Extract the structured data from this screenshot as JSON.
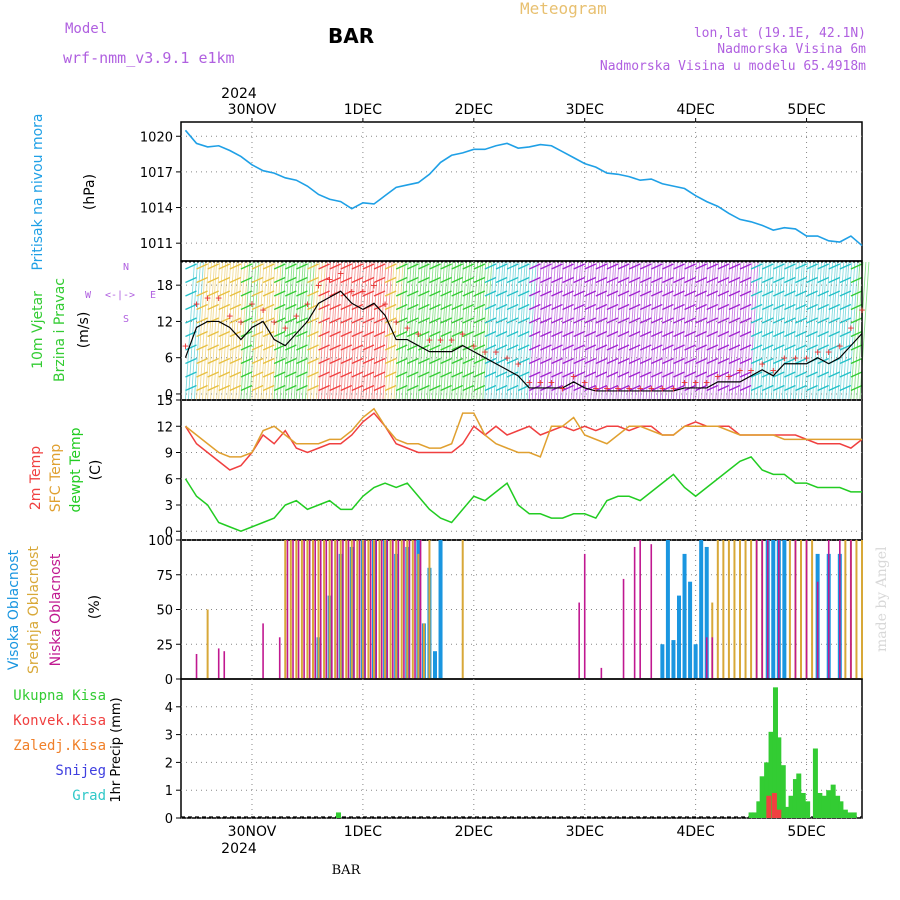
{
  "header": {
    "model_label": "Model",
    "model_name": "wrf-nmm_v3.9.1 e1km",
    "station": "BAR",
    "title": "Meteogram",
    "lonlat": "lon,lat (19.1E, 42.1N)",
    "elevation": "Nadmorska Visina 6m",
    "model_elevation": "Nadmorska Visina u modelu 65.4918m",
    "year": "2024",
    "footer_station": "BAR",
    "watermark": "made by Angel"
  },
  "colors": {
    "pressure": "#1fa0e6",
    "temp2m": "#f04040",
    "sfc": "#e0a030",
    "dewpt": "#22cc22",
    "high_cloud": "#1a96e0",
    "mid_cloud": "#d8a838",
    "low_cloud": "#c01890",
    "precip_total": "#33cc33",
    "precip_conv": "#f04040",
    "model_label": "#b060e0",
    "title": "#e8c070"
  },
  "chart_data": [
    {
      "type": "line",
      "panel": "pressure",
      "ylabel": [
        "Pritisak na nivou mora",
        "(hPa)"
      ],
      "ylim": [
        1009.5,
        1021.2
      ],
      "yticks": [
        1011,
        1014,
        1017,
        1020
      ],
      "x_days": [
        -0.6,
        -0.5,
        -0.4,
        -0.3,
        -0.2,
        -0.1,
        0.0,
        0.1,
        0.2,
        0.3,
        0.4,
        0.5,
        0.6,
        0.7,
        0.8,
        0.9,
        1.0,
        1.1,
        1.2,
        1.3,
        1.4,
        1.5,
        1.6,
        1.7,
        1.8,
        1.9,
        2.0,
        2.1,
        2.2,
        2.3,
        2.4,
        2.5,
        2.6,
        2.7,
        2.8,
        2.9,
        3.0,
        3.1,
        3.2,
        3.3,
        3.4,
        3.5,
        3.6,
        3.7,
        3.8,
        3.9,
        4.0,
        4.1,
        4.2,
        4.3,
        4.4,
        4.5,
        4.6,
        4.7,
        4.8,
        4.9,
        5.0,
        5.1,
        5.2,
        5.3,
        5.4,
        5.5
      ],
      "values": [
        1020.5,
        1019.4,
        1019.1,
        1019.2,
        1018.8,
        1018.3,
        1017.6,
        1017.1,
        1016.9,
        1016.5,
        1016.3,
        1015.8,
        1015.1,
        1014.7,
        1014.5,
        1013.9,
        1014.4,
        1014.3,
        1015.0,
        1015.7,
        1015.9,
        1016.1,
        1016.8,
        1017.8,
        1018.4,
        1018.6,
        1018.9,
        1018.9,
        1019.2,
        1019.4,
        1019.0,
        1019.1,
        1019.3,
        1019.2,
        1018.7,
        1018.2,
        1017.7,
        1017.4,
        1016.9,
        1016.8,
        1016.6,
        1016.3,
        1016.4,
        1016.0,
        1015.8,
        1015.6,
        1015.0,
        1014.5,
        1014.1,
        1013.5,
        1013.0,
        1012.8,
        1012.5,
        1012.1,
        1012.3,
        1012.2,
        1011.6,
        1011.6,
        1011.2,
        1011.1,
        1011.6,
        1010.8
      ]
    },
    {
      "type": "line",
      "panel": "wind",
      "ylabel": [
        "10m Vjetar",
        "Brzina i Pravac",
        "(m/s)"
      ],
      "compass": [
        "W",
        "E",
        "N",
        "S",
        "<",
        "-",
        "|",
        "-",
        ">"
      ],
      "ylim": [
        -1,
        22
      ],
      "yticks": [
        0,
        6,
        12,
        18
      ],
      "x_days": [
        -0.6,
        -0.5,
        -0.4,
        -0.3,
        -0.2,
        -0.1,
        0.0,
        0.1,
        0.2,
        0.3,
        0.4,
        0.5,
        0.6,
        0.7,
        0.8,
        0.9,
        1.0,
        1.1,
        1.2,
        1.3,
        1.4,
        1.5,
        1.6,
        1.7,
        1.8,
        1.9,
        2.0,
        2.1,
        2.2,
        2.3,
        2.4,
        2.5,
        2.6,
        2.7,
        2.8,
        2.9,
        3.0,
        3.1,
        3.2,
        3.3,
        3.4,
        3.5,
        3.6,
        3.7,
        3.8,
        3.9,
        4.0,
        4.1,
        4.2,
        4.3,
        4.4,
        4.5,
        4.6,
        4.7,
        4.8,
        4.9,
        5.0,
        5.1,
        5.2,
        5.3,
        5.4,
        5.5
      ],
      "series": [
        {
          "role": "mean",
          "values": [
            6,
            11,
            12,
            12,
            11,
            9,
            11,
            12,
            9,
            8,
            10,
            12,
            15,
            16,
            17,
            15,
            14,
            15,
            13,
            9,
            9,
            8,
            7,
            7,
            7,
            8,
            7,
            6,
            5,
            4,
            3,
            1,
            1,
            1,
            1,
            2,
            1,
            0.5,
            0.5,
            0.5,
            0.5,
            0.5,
            0.5,
            0.5,
            0.5,
            1,
            1,
            1,
            2,
            2,
            2,
            3,
            4,
            3,
            5,
            5,
            5,
            6,
            5,
            6,
            8,
            10
          ]
        },
        {
          "role": "gust",
          "values": [
            8,
            15,
            16,
            16,
            13,
            12,
            15,
            14,
            12,
            11,
            13,
            15,
            18,
            19,
            20,
            17,
            17,
            18,
            15,
            12,
            11,
            10,
            9,
            9,
            9,
            10,
            8,
            7,
            7,
            6,
            5,
            2,
            2,
            2,
            1,
            3,
            2,
            1,
            1,
            1,
            1,
            1,
            1,
            1,
            1,
            2,
            2,
            2,
            3,
            3,
            4,
            4,
            5,
            4,
            6,
            6,
            6,
            7,
            7,
            8,
            11,
            14
          ]
        }
      ]
    },
    {
      "type": "line",
      "panel": "temperature",
      "ylabel": [
        "2m Temp",
        "SFC Temp",
        "dewpt Temp",
        "(C)"
      ],
      "ylim": [
        -1,
        15
      ],
      "yticks": [
        0,
        3,
        6,
        9,
        12,
        15
      ],
      "x_days": [
        -0.6,
        -0.5,
        -0.4,
        -0.3,
        -0.2,
        -0.1,
        0.0,
        0.1,
        0.2,
        0.3,
        0.4,
        0.5,
        0.6,
        0.7,
        0.8,
        0.9,
        1.0,
        1.1,
        1.2,
        1.3,
        1.4,
        1.5,
        1.6,
        1.7,
        1.8,
        1.9,
        2.0,
        2.1,
        2.2,
        2.3,
        2.4,
        2.5,
        2.6,
        2.7,
        2.8,
        2.9,
        3.0,
        3.1,
        3.2,
        3.3,
        3.4,
        3.5,
        3.6,
        3.7,
        3.8,
        3.9,
        4.0,
        4.1,
        4.2,
        4.3,
        4.4,
        4.5,
        4.6,
        4.7,
        4.8,
        4.9,
        5.0,
        5.1,
        5.2,
        5.3,
        5.4,
        5.5
      ],
      "series": [
        {
          "name": "2m Temp",
          "values": [
            12,
            10,
            9,
            8,
            7,
            7.5,
            9,
            11,
            10,
            11.5,
            9.5,
            9,
            9.5,
            10,
            10,
            11,
            12.5,
            13.5,
            12,
            10,
            9.5,
            9,
            9,
            9,
            9,
            10,
            12,
            11,
            12,
            11,
            11.5,
            12,
            11,
            11.5,
            12,
            11.5,
            12,
            11.5,
            12,
            12,
            11.5,
            12,
            12,
            11,
            11,
            12,
            12.5,
            12,
            12,
            12,
            11,
            11,
            11,
            11,
            11,
            11,
            10.5,
            10,
            10,
            10,
            9.5,
            10.5
          ]
        },
        {
          "name": "SFC Temp",
          "values": [
            12,
            11,
            10,
            9,
            8.5,
            8.5,
            9,
            11.5,
            12,
            11,
            10,
            10,
            10,
            10.5,
            10.5,
            11.5,
            13,
            14,
            12,
            10.5,
            10,
            10,
            9.5,
            9.5,
            10,
            13.5,
            13.5,
            11,
            10,
            9.5,
            9,
            9,
            8.5,
            12,
            12,
            13,
            11,
            10.5,
            10,
            11,
            12,
            12,
            11.5,
            11,
            11,
            12,
            12,
            12,
            12,
            11.5,
            11,
            11,
            11,
            11,
            10.5,
            10.5,
            10.5,
            10.5,
            10.5,
            10.5,
            10.5,
            10.5
          ]
        },
        {
          "name": "dewpt Temp",
          "values": [
            6,
            4,
            3,
            1,
            0.5,
            0,
            0.5,
            1,
            1.5,
            3,
            3.5,
            2.5,
            3,
            3.5,
            2.5,
            2.5,
            4,
            5,
            5.5,
            5,
            5.5,
            4,
            2.5,
            1.5,
            1,
            2.5,
            4,
            3.5,
            4.5,
            5.5,
            3,
            2,
            2,
            1.5,
            1.5,
            2,
            2,
            1.5,
            3.5,
            4,
            4,
            3.5,
            4.5,
            5.5,
            6.5,
            5,
            4,
            5,
            6,
            7,
            8,
            8.5,
            7,
            6.5,
            6.5,
            5.5,
            5.5,
            5,
            5,
            5,
            4.5,
            4.5
          ]
        }
      ]
    },
    {
      "type": "bar",
      "panel": "clouds",
      "ylabel": [
        "Visoka Oblacnost",
        "Srednja Oblacnost",
        "Niska Oblacnost",
        "(%)"
      ],
      "ylim": [
        0,
        100
      ],
      "yticks": [
        0,
        25,
        50,
        75,
        100
      ],
      "series": [
        {
          "name": "Visoka Oblacnost",
          "x_days": [
            0.6,
            0.7,
            0.8,
            0.9,
            1.0,
            1.1,
            1.2,
            1.3,
            1.4,
            1.5,
            1.55,
            1.6,
            1.65,
            1.7,
            3.7,
            3.75,
            3.8,
            3.85,
            3.9,
            3.95,
            4.0,
            4.05,
            4.1,
            4.65,
            4.7,
            4.75,
            4.8,
            5.1,
            5.2,
            5.3
          ],
          "values": [
            30,
            60,
            90,
            95,
            100,
            100,
            100,
            90,
            95,
            100,
            40,
            80,
            20,
            100,
            25,
            100,
            28,
            60,
            90,
            70,
            25,
            100,
            95,
            100,
            100,
            100,
            100,
            90,
            90,
            90
          ]
        },
        {
          "name": "Srednja Oblacnost",
          "x_days": [
            -0.4,
            0.3,
            0.35,
            0.4,
            0.45,
            0.5,
            0.55,
            0.6,
            0.65,
            0.7,
            0.75,
            0.8,
            0.85,
            0.9,
            0.95,
            1.0,
            1.05,
            1.1,
            1.15,
            1.2,
            1.25,
            1.3,
            1.35,
            1.4,
            1.45,
            1.5,
            1.55,
            1.6,
            1.9,
            4.15,
            4.2,
            4.25,
            4.3,
            4.35,
            4.4,
            4.45,
            4.5,
            4.55,
            4.6,
            4.85,
            4.9,
            4.95,
            5.0,
            5.05,
            5.35,
            5.4,
            5.45,
            5.5
          ],
          "values": [
            50,
            100,
            100,
            100,
            100,
            100,
            100,
            100,
            100,
            100,
            100,
            100,
            100,
            100,
            100,
            100,
            100,
            100,
            100,
            100,
            100,
            100,
            100,
            100,
            100,
            90,
            40,
            100,
            100,
            55,
            100,
            100,
            100,
            100,
            100,
            100,
            100,
            100,
            100,
            100,
            100,
            100,
            100,
            100,
            100,
            100,
            100,
            100
          ]
        },
        {
          "name": "Niska Oblacnost",
          "x_days": [
            -0.5,
            -0.3,
            -0.25,
            0.1,
            0.25,
            0.32,
            0.37,
            0.42,
            0.47,
            0.52,
            0.57,
            0.62,
            0.67,
            0.72,
            0.77,
            0.82,
            0.87,
            0.92,
            0.97,
            1.02,
            1.07,
            1.12,
            1.17,
            1.22,
            1.27,
            1.32,
            1.37,
            1.42,
            1.47,
            1.52,
            2.95,
            3.0,
            3.15,
            3.35,
            3.45,
            3.5,
            3.6,
            4.1,
            4.15,
            4.55,
            4.6,
            4.65,
            4.75,
            4.9,
            5.0,
            5.1,
            5.2,
            5.3,
            5.4
          ],
          "values": [
            18,
            22,
            20,
            40,
            30,
            100,
            100,
            100,
            100,
            100,
            100,
            100,
            100,
            100,
            100,
            100,
            100,
            100,
            100,
            100,
            100,
            100,
            100,
            100,
            100,
            100,
            100,
            100,
            100,
            100,
            55,
            90,
            8,
            72,
            95,
            100,
            97,
            30,
            30,
            100,
            100,
            100,
            100,
            100,
            100,
            70,
            100,
            100,
            100
          ]
        }
      ]
    },
    {
      "type": "bar",
      "panel": "precipitation",
      "ylabel": [
        "1hr Precip (mm)"
      ],
      "legend": [
        "Ukupna Kisa",
        "Konvek.Kisa",
        "Zaledj.Kisa",
        "Snijeg",
        "Grad"
      ],
      "ylim": [
        0,
        5
      ],
      "yticks": [
        0,
        1,
        2,
        3,
        4
      ],
      "series": [
        {
          "name": "Ukupna Kisa",
          "x_days": [
            0.78,
            4.5,
            4.53,
            4.57,
            4.6,
            4.64,
            4.68,
            4.72,
            4.75,
            4.79,
            4.83,
            4.86,
            4.9,
            4.93,
            4.97,
            5.01,
            5.08,
            5.12,
            5.16,
            5.2,
            5.24,
            5.28,
            5.31,
            5.35,
            5.39,
            5.43
          ],
          "values": [
            0.2,
            0.2,
            0.2,
            0.6,
            1.5,
            2.0,
            3.1,
            4.7,
            2.9,
            1.9,
            0.4,
            0.8,
            1.4,
            1.6,
            0.9,
            0.6,
            2.5,
            0.9,
            0.8,
            1.0,
            1.2,
            0.8,
            0.6,
            0.3,
            0.2,
            0.2
          ]
        },
        {
          "name": "Konvek.Kisa",
          "x_days": [
            4.66,
            4.71,
            4.75
          ],
          "values": [
            0.8,
            0.9,
            0.3
          ]
        }
      ]
    }
  ],
  "axes": {
    "x_labels": [
      "30NOV",
      "1DEC",
      "2DEC",
      "3DEC",
      "4DEC",
      "5DEC"
    ],
    "x_domain": [
      -0.64,
      5.5
    ]
  }
}
